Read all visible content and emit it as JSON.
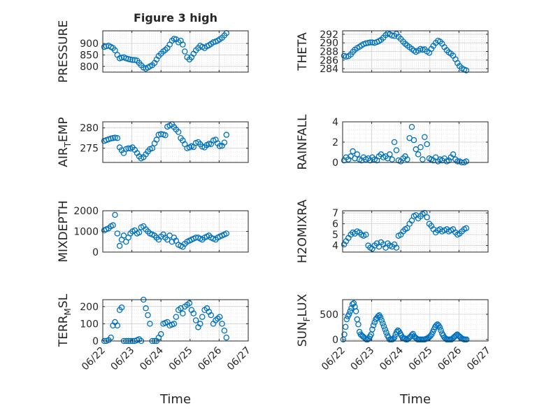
{
  "figure": {
    "title": "Figure 3 high",
    "xlabel": "Time",
    "x_ticks": [
      "06/22",
      "06/23",
      "06/24",
      "06/25",
      "06/26",
      "06/27"
    ]
  },
  "chart_data": [
    {
      "type": "scatter",
      "panel": "pressure",
      "ylabel": "PRESSURE",
      "xlim": [
        0,
        5
      ],
      "ylim": [
        775,
        955
      ],
      "yticks": [
        800,
        850,
        900
      ],
      "grid": true,
      "marker_color": "#0072BD",
      "x": [
        0.05,
        0.12,
        0.2,
        0.28,
        0.35,
        0.42,
        0.5,
        0.58,
        0.65,
        0.72,
        0.8,
        0.88,
        0.95,
        1.02,
        1.1,
        1.18,
        1.25,
        1.32,
        1.4,
        1.48,
        1.55,
        1.62,
        1.7,
        1.78,
        1.85,
        1.92,
        2.0,
        2.08,
        2.15,
        2.22,
        2.3,
        2.38,
        2.45,
        2.52,
        2.6,
        2.68,
        2.75,
        2.82,
        2.9,
        2.98,
        3.05,
        3.12,
        3.2,
        3.28,
        3.35,
        3.42,
        3.5,
        3.58,
        3.65,
        3.72,
        3.8,
        3.88,
        3.95,
        4.02,
        4.1,
        4.18,
        4.25
      ],
      "y": [
        885,
        888,
        890,
        885,
        880,
        870,
        850,
        835,
        838,
        840,
        835,
        832,
        830,
        828,
        828,
        825,
        815,
        805,
        795,
        790,
        795,
        800,
        805,
        815,
        830,
        845,
        855,
        865,
        872,
        880,
        895,
        912,
        920,
        918,
        905,
        912,
        895,
        865,
        840,
        830,
        840,
        855,
        870,
        880,
        890,
        885,
        880,
        888,
        892,
        898,
        905,
        908,
        912,
        918,
        925,
        935,
        945
      ]
    },
    {
      "type": "scatter",
      "panel": "theta",
      "ylabel": "THETA",
      "xlim": [
        0,
        5
      ],
      "ylim": [
        283.2,
        292.8
      ],
      "yticks": [
        284,
        286,
        288,
        290,
        292
      ],
      "grid": true,
      "marker_color": "#0072BD",
      "x": [
        0.05,
        0.12,
        0.2,
        0.28,
        0.35,
        0.42,
        0.5,
        0.58,
        0.65,
        0.72,
        0.8,
        0.88,
        0.95,
        1.02,
        1.1,
        1.18,
        1.25,
        1.32,
        1.4,
        1.48,
        1.55,
        1.62,
        1.7,
        1.78,
        1.85,
        1.92,
        2.0,
        2.08,
        2.15,
        2.22,
        2.3,
        2.38,
        2.45,
        2.52,
        2.6,
        2.68,
        2.75,
        2.82,
        2.9,
        2.98,
        3.05,
        3.12,
        3.2,
        3.28,
        3.35,
        3.42,
        3.5,
        3.58,
        3.65,
        3.72,
        3.8,
        3.88,
        3.95,
        4.02,
        4.1,
        4.18,
        4.25
      ],
      "y": [
        287.0,
        286.8,
        286.9,
        287.3,
        287.9,
        288.4,
        288.8,
        289.1,
        289.4,
        289.7,
        289.9,
        290.0,
        290.1,
        290.1,
        290.0,
        290.2,
        290.4,
        290.7,
        291.2,
        291.8,
        292.2,
        292.0,
        291.7,
        291.6,
        292.1,
        291.4,
        290.9,
        290.3,
        289.8,
        289.4,
        289.0,
        288.6,
        288.2,
        287.9,
        288.2,
        288.6,
        288.4,
        288.5,
        288.0,
        287.7,
        288.6,
        289.3,
        290.0,
        290.5,
        290.3,
        289.8,
        289.0,
        288.3,
        287.8,
        287.5,
        287.0,
        286.2,
        285.3,
        284.6,
        284.1,
        283.8,
        283.6
      ]
    },
    {
      "type": "scatter",
      "panel": "air_temp",
      "ylabel": "AIR",
      "ylabel_sub": "T",
      "ylabel_rest": "EMP",
      "xlim": [
        0,
        5
      ],
      "ylim": [
        271.5,
        281.5
      ],
      "yticks": [
        275,
        280
      ],
      "grid": true,
      "marker_color": "#0072BD",
      "x": [
        0.05,
        0.12,
        0.2,
        0.28,
        0.35,
        0.42,
        0.5,
        0.58,
        0.65,
        0.72,
        0.8,
        0.88,
        0.95,
        1.02,
        1.1,
        1.18,
        1.25,
        1.32,
        1.4,
        1.48,
        1.55,
        1.62,
        1.7,
        1.78,
        1.85,
        1.92,
        2.0,
        2.08,
        2.15,
        2.22,
        2.3,
        2.38,
        2.45,
        2.52,
        2.6,
        2.68,
        2.75,
        2.82,
        2.9,
        2.98,
        3.05,
        3.12,
        3.2,
        3.28,
        3.35,
        3.42,
        3.5,
        3.58,
        3.65,
        3.72,
        3.8,
        3.88,
        3.95,
        4.02,
        4.1,
        4.18,
        4.25
      ],
      "y": [
        276.8,
        277.0,
        277.2,
        277.4,
        277.5,
        277.6,
        277.5,
        275.2,
        274.5,
        273.8,
        274.8,
        275.0,
        274.9,
        275.2,
        274.6,
        273.8,
        273.0,
        272.5,
        272.8,
        273.5,
        274.2,
        274.8,
        275.0,
        276.2,
        277.1,
        278.3,
        278.5,
        278.4,
        278.2,
        280.3,
        280.6,
        280.9,
        280.2,
        279.6,
        279.0,
        277.5,
        276.9,
        276.0,
        275.0,
        275.2,
        275.5,
        275.3,
        276.3,
        276.5,
        276.0,
        275.4,
        275.2,
        275.8,
        276.1,
        276.0,
        276.9,
        277.1,
        276.2,
        275.5,
        275.6,
        276.4,
        278.3
      ]
    },
    {
      "type": "scatter",
      "panel": "rainfall",
      "ylabel": "RAINFALL",
      "xlim": [
        0,
        5
      ],
      "ylim": [
        0,
        4
      ],
      "yticks": [
        0,
        2,
        4
      ],
      "grid": true,
      "marker_color": "#0072BD",
      "x": [
        0.05,
        0.12,
        0.2,
        0.28,
        0.35,
        0.42,
        0.5,
        0.58,
        0.65,
        0.72,
        0.8,
        0.88,
        0.95,
        1.02,
        1.1,
        1.18,
        1.25,
        1.32,
        1.4,
        1.48,
        1.55,
        1.62,
        1.7,
        1.78,
        1.85,
        1.92,
        2.0,
        2.08,
        2.15,
        2.22,
        2.3,
        2.38,
        2.45,
        2.52,
        2.6,
        2.68,
        2.75,
        2.82,
        2.9,
        2.98,
        3.05,
        3.12,
        3.2,
        3.28,
        3.35,
        3.42,
        3.5,
        3.58,
        3.65,
        3.72,
        3.8,
        3.88,
        3.95,
        4.02,
        4.1,
        4.18,
        4.25
      ],
      "y": [
        0.2,
        0.5,
        0.3,
        0.6,
        1.1,
        0.4,
        0.8,
        0.3,
        0.2,
        0.5,
        0.3,
        0.4,
        0.2,
        0.5,
        0.3,
        0.2,
        0.6,
        0.8,
        0.5,
        0.6,
        0.4,
        0.8,
        0.3,
        2.0,
        1.2,
        0.2,
        0.1,
        0.4,
        0.6,
        0.3,
        2.4,
        3.5,
        2.2,
        1.3,
        0.8,
        1.5,
        0.3,
        2.5,
        1.8,
        0.4,
        0.3,
        0.2,
        0.5,
        0.1,
        0.3,
        0.2,
        0.4,
        0.1,
        0.2,
        0.5,
        0.8,
        0.3,
        0.1,
        0.1,
        0.0,
        0.0,
        0.1
      ]
    },
    {
      "type": "scatter",
      "panel": "mixdepth",
      "ylabel": "MIXDEPTH",
      "xlim": [
        0,
        5
      ],
      "ylim": [
        0,
        2000
      ],
      "yticks": [
        0,
        1000,
        2000
      ],
      "grid": true,
      "marker_color": "#0072BD",
      "x": [
        0.05,
        0.12,
        0.2,
        0.28,
        0.35,
        0.42,
        0.5,
        0.58,
        0.65,
        0.72,
        0.8,
        0.88,
        0.95,
        1.02,
        1.1,
        1.18,
        1.25,
        1.32,
        1.4,
        1.48,
        1.55,
        1.62,
        1.7,
        1.78,
        1.85,
        1.92,
        2.0,
        2.08,
        2.15,
        2.22,
        2.3,
        2.38,
        2.45,
        2.52,
        2.6,
        2.68,
        2.75,
        2.82,
        2.9,
        2.98,
        3.05,
        3.12,
        3.2,
        3.28,
        3.35,
        3.42,
        3.5,
        3.58,
        3.65,
        3.72,
        3.8,
        3.88,
        3.95,
        4.02,
        4.1,
        4.18,
        4.25
      ],
      "y": [
        1050,
        1100,
        1150,
        1250,
        1300,
        1800,
        900,
        300,
        600,
        800,
        500,
        700,
        900,
        1000,
        1050,
        900,
        950,
        1200,
        1250,
        1100,
        1000,
        900,
        850,
        800,
        700,
        600,
        750,
        850,
        700,
        600,
        800,
        500,
        700,
        550,
        350,
        300,
        250,
        400,
        500,
        550,
        600,
        650,
        700,
        700,
        650,
        600,
        700,
        750,
        800,
        700,
        650,
        600,
        700,
        750,
        800,
        850,
        900
      ]
    },
    {
      "type": "scatter",
      "panel": "h2omixra",
      "ylabel": "H2OMIXRA",
      "xlim": [
        0,
        5
      ],
      "ylim": [
        3.4,
        7.2
      ],
      "yticks": [
        4,
        5,
        6,
        7
      ],
      "grid": true,
      "marker_color": "#0072BD",
      "x": [
        0.05,
        0.12,
        0.2,
        0.28,
        0.35,
        0.42,
        0.5,
        0.58,
        0.65,
        0.72,
        0.8,
        0.88,
        0.95,
        1.02,
        1.1,
        1.18,
        1.25,
        1.32,
        1.4,
        1.48,
        1.55,
        1.62,
        1.7,
        1.78,
        1.85,
        1.92,
        2.0,
        2.08,
        2.15,
        2.22,
        2.3,
        2.38,
        2.45,
        2.52,
        2.6,
        2.68,
        2.75,
        2.82,
        2.9,
        2.98,
        3.05,
        3.12,
        3.2,
        3.28,
        3.35,
        3.42,
        3.5,
        3.58,
        3.65,
        3.72,
        3.8,
        3.88,
        3.95,
        4.02,
        4.1,
        4.18,
        4.25
      ],
      "y": [
        4.1,
        4.4,
        4.7,
        5.0,
        5.2,
        5.1,
        5.3,
        5.2,
        5.0,
        4.9,
        5.0,
        4.0,
        3.8,
        3.7,
        4.0,
        4.2,
        3.9,
        4.3,
        4.1,
        3.8,
        4.2,
        4.0,
        3.9,
        4.1,
        3.8,
        4.9,
        5.0,
        5.3,
        5.5,
        5.6,
        6.0,
        6.3,
        6.7,
        6.8,
        6.5,
        6.7,
        6.9,
        7.0,
        6.6,
        6.0,
        5.8,
        5.5,
        5.2,
        5.4,
        5.5,
        5.3,
        5.4,
        5.5,
        5.3,
        5.4,
        5.5,
        5.2,
        5.0,
        5.1,
        5.3,
        5.5,
        5.6
      ]
    },
    {
      "type": "scatter",
      "panel": "terr_msl",
      "ylabel": "TERR",
      "ylabel_sub": "M",
      "ylabel_rest": "SL",
      "xlim": [
        0,
        5
      ],
      "ylim": [
        0,
        240
      ],
      "yticks": [
        0,
        100,
        200
      ],
      "grid": true,
      "marker_color": "#0072BD",
      "x": [
        0.05,
        0.12,
        0.2,
        0.28,
        0.35,
        0.42,
        0.5,
        0.58,
        0.65,
        0.72,
        0.8,
        0.88,
        0.95,
        1.02,
        1.1,
        1.18,
        1.25,
        1.32,
        1.4,
        1.48,
        1.55,
        1.62,
        1.7,
        1.78,
        1.85,
        1.92,
        2.0,
        2.08,
        2.15,
        2.22,
        2.3,
        2.38,
        2.45,
        2.52,
        2.6,
        2.68,
        2.75,
        2.82,
        2.9,
        2.98,
        3.05,
        3.12,
        3.2,
        3.28,
        3.35,
        3.42,
        3.5,
        3.58,
        3.65,
        3.72,
        3.8,
        3.88,
        3.95,
        4.02,
        4.1,
        4.18,
        4.25
      ],
      "y": [
        0,
        0,
        5,
        20,
        90,
        110,
        90,
        180,
        195,
        0,
        0,
        0,
        0,
        0,
        0,
        5,
        10,
        0,
        240,
        190,
        150,
        100,
        0,
        0,
        0,
        20,
        40,
        100,
        105,
        110,
        90,
        95,
        100,
        140,
        180,
        190,
        160,
        200,
        210,
        220,
        180,
        160,
        120,
        80,
        100,
        140,
        180,
        190,
        170,
        150,
        100,
        120,
        130,
        140,
        100,
        60,
        20
      ]
    },
    {
      "type": "scatter",
      "panel": "sun_flux",
      "ylabel": "SUN",
      "ylabel_sub": "F",
      "ylabel_rest": "LUX",
      "xlim": [
        0,
        5
      ],
      "ylim": [
        -30,
        790
      ],
      "yticks": [
        0,
        500
      ],
      "grid": true,
      "marker_color": "#0072BD",
      "x": [
        0.02,
        0.06,
        0.1,
        0.14,
        0.18,
        0.22,
        0.26,
        0.3,
        0.34,
        0.38,
        0.42,
        0.46,
        0.5,
        0.54,
        0.58,
        0.62,
        0.66,
        0.7,
        0.74,
        0.78,
        0.82,
        0.86,
        0.9,
        0.94,
        0.98,
        1.02,
        1.06,
        1.1,
        1.14,
        1.18,
        1.22,
        1.26,
        1.3,
        1.34,
        1.38,
        1.42,
        1.46,
        1.5,
        1.54,
        1.58,
        1.62,
        1.66,
        1.7,
        1.74,
        1.78,
        1.82,
        1.86,
        1.9,
        1.94,
        1.98,
        2.02,
        2.06,
        2.1,
        2.14,
        2.18,
        2.22,
        2.26,
        2.3,
        2.34,
        2.38,
        2.42,
        2.46,
        2.5,
        2.54,
        2.58,
        2.62,
        2.66,
        2.7,
        2.74,
        2.78,
        2.82,
        2.86,
        2.9,
        2.94,
        2.98,
        3.02,
        3.06,
        3.1,
        3.14,
        3.18,
        3.22,
        3.26,
        3.3,
        3.34,
        3.38,
        3.42,
        3.46,
        3.5,
        3.54,
        3.58,
        3.62,
        3.66,
        3.7,
        3.74,
        3.78,
        3.82,
        3.86,
        3.9,
        3.94,
        3.98,
        4.02,
        4.06,
        4.1,
        4.14,
        4.18,
        4.22,
        4.26
      ],
      "y": [
        0,
        100,
        250,
        400,
        460,
        500,
        560,
        620,
        700,
        720,
        650,
        560,
        400,
        300,
        150,
        100,
        80,
        60,
        40,
        20,
        0,
        0,
        20,
        60,
        100,
        200,
        280,
        340,
        400,
        430,
        460,
        480,
        440,
        380,
        320,
        260,
        200,
        140,
        80,
        40,
        0,
        0,
        0,
        10,
        40,
        100,
        150,
        180,
        160,
        120,
        80,
        40,
        20,
        20,
        0,
        0,
        20,
        40,
        60,
        90,
        110,
        60,
        40,
        20,
        0,
        0,
        0,
        0,
        0,
        0,
        0,
        10,
        20,
        30,
        50,
        70,
        100,
        150,
        200,
        250,
        280,
        300,
        280,
        240,
        180,
        120,
        80,
        40,
        20,
        0,
        0,
        0,
        0,
        0,
        20,
        40,
        60,
        80,
        100,
        80,
        60,
        40,
        20,
        10,
        0,
        0,
        0
      ]
    }
  ]
}
